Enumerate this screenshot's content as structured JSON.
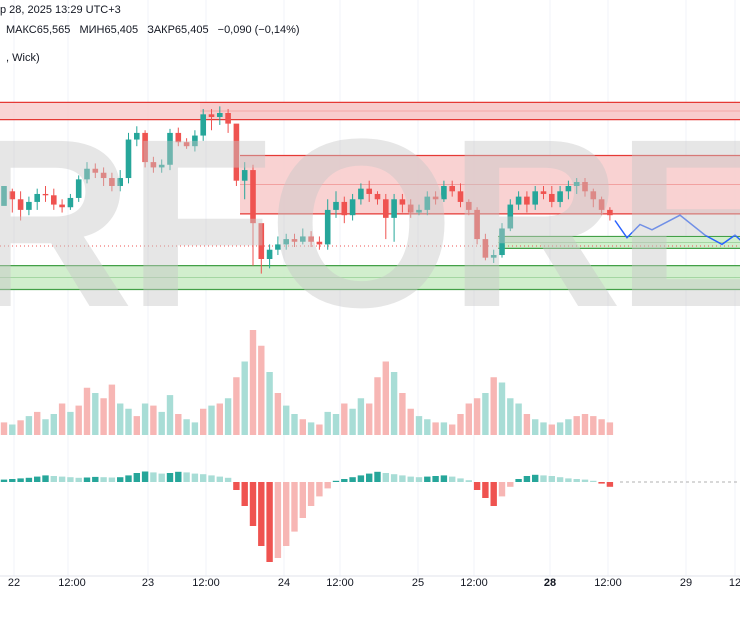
{
  "header": {
    "datetime": "р 28, 2025 13:29 UTC+3",
    "open": "",
    "high_label": "МАКС",
    "high": "65,565",
    "low_label": "МИН",
    "low": "65,405",
    "close_label": "ЗАКР",
    "close": "65,405",
    "change": "−0,090 (−0,14%)",
    "indicator": ", Wick)"
  },
  "watermark": "RFOREX.c",
  "x_axis_labels": [
    {
      "text": "22",
      "bold": false
    },
    {
      "text": "12:00",
      "bold": false
    },
    {
      "text": "23",
      "bold": false
    },
    {
      "text": "12:00",
      "bold": false
    },
    {
      "text": "24",
      "bold": false
    },
    {
      "text": "12:00",
      "bold": false
    },
    {
      "text": "25",
      "bold": false
    },
    {
      "text": "12:00",
      "bold": false
    },
    {
      "text": "28",
      "bold": true
    },
    {
      "text": "12:00",
      "bold": false
    },
    {
      "text": "29",
      "bold": false
    },
    {
      "text": "12",
      "bold": false
    }
  ],
  "colors": {
    "up": "#26a69a",
    "down": "#ef5350",
    "up_light": "#a8ddd6",
    "down_light": "#f7b6b4",
    "zone_red_fill": "#f8caca",
    "zone_red_border": "#e53935",
    "zone_green_fill": "#c9ebc4",
    "zone_green_border": "#43a047",
    "forecast": "#2962ff"
  },
  "chart_data": {
    "type": "candlestick",
    "price_axis": [
      64.6,
      66.8
    ],
    "zones": [
      {
        "kind": "resistance",
        "from": 66.2,
        "to": 66.33
      },
      {
        "kind": "resistance",
        "from": 65.49,
        "to": 65.93
      },
      {
        "kind": "support",
        "from": 65.23,
        "to": 65.32
      },
      {
        "kind": "support",
        "from": 64.92,
        "to": 65.1
      }
    ],
    "candles": [
      [
        65.55,
        65.7,
        65.7,
        65.66
      ],
      [
        65.66,
        65.6,
        65.68,
        65.5
      ],
      [
        65.6,
        65.52,
        65.66,
        65.44
      ],
      [
        65.52,
        65.58,
        65.62,
        65.48
      ],
      [
        65.58,
        65.64,
        65.68,
        65.52
      ],
      [
        65.64,
        65.63,
        65.7,
        65.58
      ],
      [
        65.63,
        65.56,
        65.68,
        65.52
      ],
      [
        65.56,
        65.54,
        65.6,
        65.5
      ],
      [
        65.54,
        65.61,
        65.64,
        65.52
      ],
      [
        65.61,
        65.75,
        65.78,
        65.58
      ],
      [
        65.75,
        65.83,
        65.88,
        65.72
      ],
      [
        65.83,
        65.8,
        65.87,
        65.76
      ],
      [
        65.8,
        65.76,
        65.84,
        65.7
      ],
      [
        65.76,
        65.7,
        65.8,
        65.66
      ],
      [
        65.7,
        65.76,
        65.82,
        65.66
      ],
      [
        65.76,
        66.05,
        66.1,
        65.72
      ],
      [
        66.05,
        66.1,
        66.15,
        66.0
      ],
      [
        66.1,
        65.88,
        66.12,
        65.84
      ],
      [
        65.88,
        65.84,
        65.92,
        65.8
      ],
      [
        65.84,
        65.86,
        65.9,
        65.8
      ],
      [
        65.86,
        66.1,
        66.13,
        65.82
      ],
      [
        66.1,
        66.03,
        66.14,
        66.0
      ],
      [
        66.03,
        66.0,
        66.06,
        65.98
      ],
      [
        66.0,
        66.08,
        66.12,
        65.96
      ],
      [
        66.08,
        66.24,
        66.28,
        66.04
      ],
      [
        66.24,
        66.22,
        66.28,
        66.12
      ],
      [
        66.22,
        66.25,
        66.3,
        66.16
      ],
      [
        66.25,
        66.17,
        66.28,
        66.1
      ],
      [
        66.17,
        65.74,
        66.1,
        65.7
      ],
      [
        65.74,
        65.82,
        65.88,
        65.6
      ],
      [
        65.82,
        65.42,
        65.86,
        65.1
      ],
      [
        65.42,
        65.15,
        65.3,
        65.04
      ],
      [
        65.15,
        65.22,
        65.26,
        65.08
      ],
      [
        65.22,
        65.26,
        65.32,
        65.18
      ],
      [
        65.26,
        65.3,
        65.34,
        65.22
      ],
      [
        65.3,
        65.28,
        65.34,
        65.24
      ],
      [
        65.28,
        65.32,
        65.38,
        65.26
      ],
      [
        65.32,
        65.28,
        65.36,
        65.24
      ],
      [
        65.28,
        65.26,
        65.32,
        65.22
      ],
      [
        65.26,
        65.52,
        65.6,
        65.22
      ],
      [
        65.52,
        65.58,
        65.66,
        65.46
      ],
      [
        65.58,
        65.48,
        65.62,
        65.42
      ],
      [
        65.48,
        65.6,
        65.64,
        65.44
      ],
      [
        65.6,
        65.68,
        65.72,
        65.56
      ],
      [
        65.68,
        65.64,
        65.74,
        65.58
      ],
      [
        65.64,
        65.6,
        65.66,
        65.56
      ],
      [
        65.6,
        65.46,
        65.64,
        65.3
      ],
      [
        65.46,
        65.6,
        65.64,
        65.28
      ],
      [
        65.6,
        65.56,
        65.64,
        65.5
      ],
      [
        65.56,
        65.5,
        65.6,
        65.46
      ],
      [
        65.5,
        65.52,
        65.56,
        65.48
      ],
      [
        65.52,
        65.62,
        65.66,
        65.48
      ],
      [
        65.62,
        65.6,
        65.66,
        65.56
      ],
      [
        65.6,
        65.7,
        65.74,
        65.58
      ],
      [
        65.7,
        65.66,
        65.74,
        65.62
      ],
      [
        65.66,
        65.58,
        65.72,
        65.54
      ],
      [
        65.58,
        65.52,
        65.6,
        65.48
      ],
      [
        65.52,
        65.3,
        65.54,
        65.26
      ],
      [
        65.3,
        65.16,
        65.34,
        65.14
      ],
      [
        65.16,
        65.18,
        65.22,
        65.12
      ],
      [
        65.18,
        65.38,
        65.42,
        65.16
      ],
      [
        65.38,
        65.56,
        65.6,
        65.36
      ],
      [
        65.56,
        65.62,
        65.66,
        65.52
      ],
      [
        65.62,
        65.56,
        65.66,
        65.5
      ],
      [
        65.56,
        65.66,
        65.7,
        65.52
      ],
      [
        65.66,
        65.64,
        65.7,
        65.6
      ],
      [
        65.64,
        65.58,
        65.7,
        65.54
      ],
      [
        65.58,
        65.66,
        65.7,
        65.54
      ],
      [
        65.66,
        65.7,
        65.74,
        65.6
      ],
      [
        65.7,
        65.73,
        65.76,
        65.64
      ],
      [
        65.73,
        65.66,
        65.76,
        65.62
      ],
      [
        65.66,
        65.6,
        65.68,
        65.54
      ],
      [
        65.6,
        65.52,
        65.62,
        65.48
      ],
      [
        65.52,
        65.48,
        65.54,
        65.44
      ]
    ],
    "volume": [
      [
        0.12,
        "down"
      ],
      [
        0.1,
        "up"
      ],
      [
        0.14,
        "down"
      ],
      [
        0.18,
        "up"
      ],
      [
        0.22,
        "down"
      ],
      [
        0.15,
        "up"
      ],
      [
        0.2,
        "up"
      ],
      [
        0.3,
        "down"
      ],
      [
        0.22,
        "up"
      ],
      [
        0.28,
        "down"
      ],
      [
        0.45,
        "down"
      ],
      [
        0.4,
        "up"
      ],
      [
        0.35,
        "down"
      ],
      [
        0.48,
        "down"
      ],
      [
        0.3,
        "up"
      ],
      [
        0.25,
        "up"
      ],
      [
        0.18,
        "down"
      ],
      [
        0.3,
        "up"
      ],
      [
        0.28,
        "down"
      ],
      [
        0.22,
        "up"
      ],
      [
        0.38,
        "up"
      ],
      [
        0.2,
        "down"
      ],
      [
        0.15,
        "up"
      ],
      [
        0.12,
        "up"
      ],
      [
        0.25,
        "down"
      ],
      [
        0.28,
        "up"
      ],
      [
        0.3,
        "down"
      ],
      [
        0.35,
        "up"
      ],
      [
        0.55,
        "down"
      ],
      [
        0.7,
        "up"
      ],
      [
        1.0,
        "down"
      ],
      [
        0.85,
        "down"
      ],
      [
        0.6,
        "up"
      ],
      [
        0.4,
        "down"
      ],
      [
        0.28,
        "up"
      ],
      [
        0.2,
        "up"
      ],
      [
        0.15,
        "down"
      ],
      [
        0.12,
        "up"
      ],
      [
        0.1,
        "down"
      ],
      [
        0.22,
        "up"
      ],
      [
        0.2,
        "up"
      ],
      [
        0.3,
        "down"
      ],
      [
        0.25,
        "up"
      ],
      [
        0.35,
        "up"
      ],
      [
        0.3,
        "down"
      ],
      [
        0.55,
        "down"
      ],
      [
        0.7,
        "down"
      ],
      [
        0.6,
        "up"
      ],
      [
        0.4,
        "down"
      ],
      [
        0.25,
        "down"
      ],
      [
        0.18,
        "up"
      ],
      [
        0.15,
        "up"
      ],
      [
        0.12,
        "down"
      ],
      [
        0.12,
        "up"
      ],
      [
        0.1,
        "down"
      ],
      [
        0.2,
        "down"
      ],
      [
        0.3,
        "down"
      ],
      [
        0.35,
        "down"
      ],
      [
        0.4,
        "up"
      ],
      [
        0.55,
        "down"
      ],
      [
        0.5,
        "up"
      ],
      [
        0.35,
        "up"
      ],
      [
        0.3,
        "up"
      ],
      [
        0.2,
        "down"
      ],
      [
        0.15,
        "up"
      ],
      [
        0.12,
        "up"
      ],
      [
        0.1,
        "down"
      ],
      [
        0.12,
        "up"
      ],
      [
        0.15,
        "up"
      ],
      [
        0.18,
        "down"
      ],
      [
        0.2,
        "down"
      ],
      [
        0.18,
        "down"
      ],
      [
        0.15,
        "down"
      ],
      [
        0.12,
        "down"
      ]
    ],
    "histogram": [
      0.08,
      0.1,
      0.12,
      0.14,
      0.18,
      0.22,
      0.2,
      0.18,
      0.16,
      0.14,
      0.15,
      0.17,
      0.16,
      0.15,
      0.16,
      0.22,
      0.3,
      0.35,
      0.32,
      0.28,
      0.3,
      0.34,
      0.32,
      0.28,
      0.26,
      0.22,
      0.18,
      0.14,
      -0.1,
      -0.3,
      -0.55,
      -0.8,
      -1.0,
      -0.95,
      -0.8,
      -0.62,
      -0.45,
      -0.3,
      -0.18,
      -0.08,
      0.04,
      0.1,
      0.16,
      0.22,
      0.28,
      0.34,
      0.3,
      0.26,
      0.22,
      0.18,
      0.16,
      0.18,
      0.2,
      0.22,
      0.18,
      0.12,
      0.06,
      -0.1,
      -0.2,
      -0.3,
      -0.18,
      -0.06,
      0.1,
      0.2,
      0.24,
      0.22,
      0.2,
      0.16,
      0.12,
      0.1,
      0.08,
      0.04,
      -0.02,
      -0.06
    ],
    "forecast": [
      [
        65.44,
        65.31,
        65.41,
        65.37,
        65.48,
        65.33,
        65.26,
        65.33,
        65.26
      ]
    ]
  }
}
